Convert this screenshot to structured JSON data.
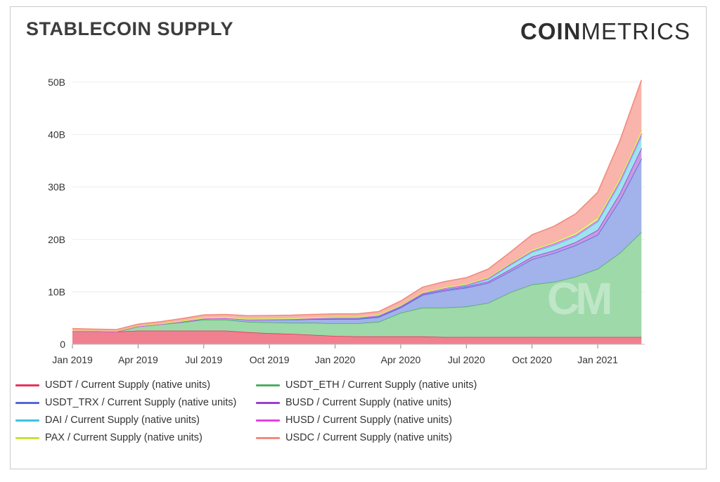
{
  "header": {
    "title": "STABLECOIN SUPPLY",
    "brand_bold": "COIN",
    "brand_light": "METRICS",
    "watermark": "CM"
  },
  "chart_data": {
    "type": "area",
    "stacked": true,
    "title": "STABLECOIN SUPPLY",
    "xlabel": "",
    "ylabel": "",
    "ylim": [
      0,
      52
    ],
    "y_unit": "B",
    "yticks": [
      "0",
      "10B",
      "20B",
      "30B",
      "40B",
      "50B"
    ],
    "ytick_values": [
      0,
      10,
      20,
      30,
      40,
      50
    ],
    "xticks": [
      "Jan 2019",
      "Apr 2019",
      "Jul 2019",
      "Oct 2019",
      "Jan 2020",
      "Apr 2020",
      "Jul 2020",
      "Oct 2020",
      "Jan 2021"
    ],
    "xtick_months": [
      0,
      3,
      6,
      9,
      12,
      15,
      18,
      21,
      24
    ],
    "x_months": [
      0,
      1,
      2,
      3,
      4,
      5,
      6,
      7,
      8,
      9,
      10,
      11,
      12,
      13,
      14,
      15,
      16,
      17,
      18,
      19,
      20,
      21,
      22,
      23,
      24,
      25,
      26
    ],
    "x_labels": [
      "2019-01",
      "2019-02",
      "2019-03",
      "2019-04",
      "2019-05",
      "2019-06",
      "2019-07",
      "2019-08",
      "2019-09",
      "2019-10",
      "2019-11",
      "2019-12",
      "2020-01",
      "2020-02",
      "2020-03",
      "2020-04",
      "2020-05",
      "2020-06",
      "2020-07",
      "2020-08",
      "2020-09",
      "2020-10",
      "2020-11",
      "2020-12",
      "2021-01",
      "2021-02",
      "2021-03"
    ],
    "grid": true,
    "legend_position": "bottom",
    "series": [
      {
        "name": "USDT / Current Supply (native units)",
        "color": "#f0808f",
        "line": "#e8325a",
        "values": [
          2.5,
          2.5,
          2.4,
          2.6,
          2.6,
          2.6,
          2.6,
          2.6,
          2.3,
          2.1,
          2.0,
          1.8,
          1.6,
          1.5,
          1.5,
          1.5,
          1.5,
          1.4,
          1.4,
          1.4,
          1.4,
          1.4,
          1.4,
          1.4,
          1.4,
          1.4,
          1.4
        ]
      },
      {
        "name": "USDT_ETH / Current Supply (native units)",
        "color": "#9dd9a9",
        "line": "#4caf64",
        "values": [
          0,
          0,
          0,
          0.8,
          1.2,
          1.6,
          2.1,
          2.1,
          2.0,
          2.1,
          2.1,
          2.3,
          2.4,
          2.5,
          2.8,
          4.5,
          5.5,
          5.6,
          5.8,
          6.5,
          8.5,
          10.0,
          10.5,
          11.5,
          13.0,
          16.0,
          20.0
        ]
      },
      {
        "name": "USDT_TRX / Current Supply (native units)",
        "color": "#a2b2ea",
        "line": "#5269d8",
        "values": [
          0,
          0,
          0,
          0,
          0,
          0.1,
          0.2,
          0.3,
          0.4,
          0.5,
          0.6,
          0.7,
          0.8,
          0.8,
          0.9,
          1.0,
          2.4,
          3.2,
          3.6,
          3.8,
          4.0,
          4.8,
          5.5,
          6.0,
          6.5,
          10.0,
          14.0
        ]
      },
      {
        "name": "BUSD / Current Supply (native units)",
        "color": "#c79be3",
        "line": "#9a3fcf",
        "values": [
          0,
          0,
          0,
          0,
          0,
          0,
          0,
          0,
          0,
          0.05,
          0.05,
          0.05,
          0.1,
          0.1,
          0.1,
          0.1,
          0.15,
          0.2,
          0.2,
          0.3,
          0.4,
          0.5,
          0.5,
          0.6,
          0.9,
          1.3,
          2.0
        ]
      },
      {
        "name": "DAI / Current Supply (native units)",
        "color": "#9fe3ef",
        "line": "#3fc3e0",
        "values": [
          0,
          0,
          0,
          0,
          0,
          0,
          0,
          0,
          0,
          0,
          0,
          0.05,
          0.05,
          0.05,
          0.1,
          0.1,
          0.1,
          0.1,
          0.15,
          0.4,
          0.8,
          0.9,
          1.0,
          1.1,
          1.6,
          2.0,
          2.3
        ]
      },
      {
        "name": "HUSD / Current Supply (native units)",
        "color": "#f19cef",
        "line": "#e640e0",
        "values": [
          0,
          0,
          0,
          0,
          0,
          0,
          0,
          0,
          0,
          0,
          0.05,
          0.05,
          0.1,
          0.1,
          0.1,
          0.1,
          0.1,
          0.2,
          0.2,
          0.2,
          0.2,
          0.2,
          0.3,
          0.3,
          0.3,
          0.4,
          0.5
        ]
      },
      {
        "name": "PAX / Current Supply (native units)",
        "color": "#e1f299",
        "line": "#c5e43a",
        "values": [
          0.1,
          0.1,
          0.1,
          0.15,
          0.2,
          0.2,
          0.25,
          0.25,
          0.25,
          0.25,
          0.25,
          0.25,
          0.25,
          0.25,
          0.25,
          0.25,
          0.25,
          0.25,
          0.25,
          0.25,
          0.25,
          0.3,
          0.3,
          0.4,
          0.5,
          0.6,
          0.7
        ]
      },
      {
        "name": "USDC / Current Supply (native units)",
        "color": "#f9b4ab",
        "line": "#f48a7d",
        "values": [
          0.4,
          0.3,
          0.3,
          0.3,
          0.3,
          0.4,
          0.45,
          0.45,
          0.5,
          0.5,
          0.5,
          0.5,
          0.5,
          0.5,
          0.5,
          0.7,
          0.9,
          1.0,
          1.1,
          1.5,
          2.0,
          2.8,
          3.0,
          3.6,
          4.8,
          7.0,
          9.5
        ]
      }
    ]
  }
}
